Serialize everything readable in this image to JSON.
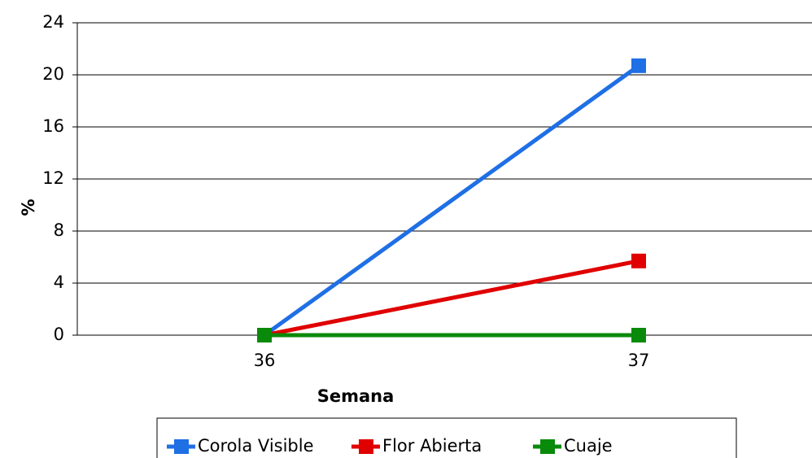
{
  "chart_data": {
    "type": "line",
    "categories": [
      "36",
      "37"
    ],
    "series": [
      {
        "name": "Corola Visible",
        "color": "#1f6fe5",
        "values": [
          0,
          20.7
        ]
      },
      {
        "name": "Flor Abierta",
        "color": "#e00000",
        "values": [
          0,
          5.7
        ]
      },
      {
        "name": "Cuaje",
        "color": "#0a8a0a",
        "values": [
          0,
          0
        ]
      }
    ],
    "xlabel": "Semana",
    "ylabel": "%",
    "ylim": [
      0,
      24
    ],
    "yticks": [
      0,
      4,
      8,
      12,
      16,
      20,
      24
    ],
    "grid": true,
    "legend": "bottom"
  }
}
